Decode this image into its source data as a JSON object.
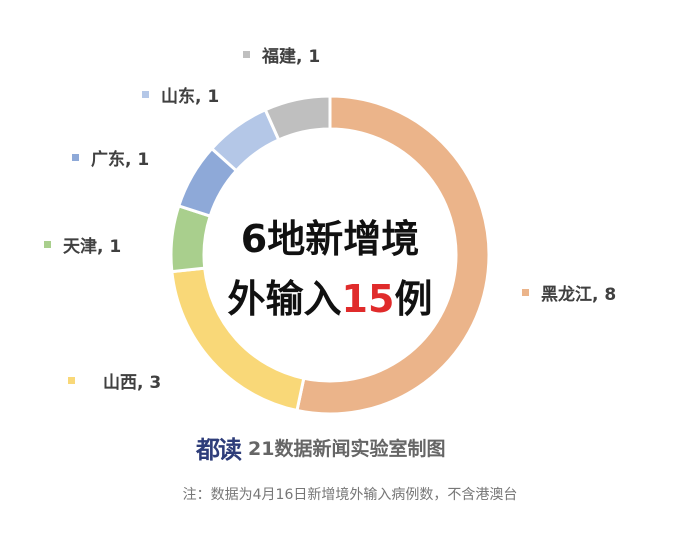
{
  "chart_data": {
    "type": "pie",
    "donut": true,
    "title_line1": "6地新增境",
    "title_line2_prefix": "外输入",
    "title_highlight": "15",
    "title_line2_suffix": "例",
    "total": 15,
    "slices": [
      {
        "name": "黑龙江",
        "value": 8,
        "label": "黑龙江, 8",
        "color": "#EBB48A"
      },
      {
        "name": "山西",
        "value": 3,
        "label": "山西, 3",
        "color": "#F9D878"
      },
      {
        "name": "天津",
        "value": 1,
        "label": "天津, 1",
        "color": "#A9CF8D"
      },
      {
        "name": "广东",
        "value": 1,
        "label": "广东, 1",
        "color": "#8EA9D8"
      },
      {
        "name": "山东",
        "value": 1,
        "label": "山东, 1",
        "color": "#B4C7E7"
      },
      {
        "name": "福建",
        "value": 1,
        "label": "福建, 1",
        "color": "#BFBFBF"
      }
    ]
  },
  "credit": {
    "logo": "都读",
    "text": "21数据新闻实验室制图"
  },
  "note": "注：数据为4月16日新增境外输入病例数，不含港澳台"
}
